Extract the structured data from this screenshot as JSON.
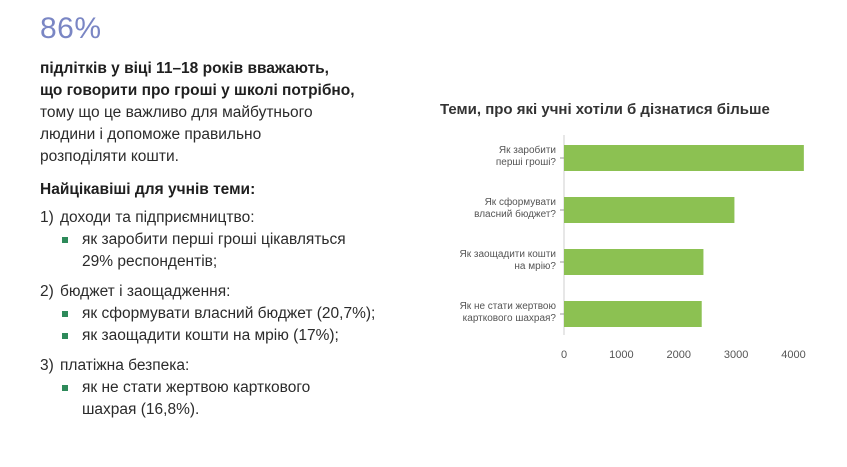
{
  "headline": {
    "percent": "86%",
    "bold_line_1": "підлітків у віці 11–18 років вважають,",
    "bold_line_2": "що говорити про гроші у школі потрібно,",
    "line_3": "тому що це важливо для майбутнього",
    "line_4": "людини і допоможе правильно",
    "line_5": "розподіляти кошти."
  },
  "topics": {
    "title": "Найцікавіші для учнів теми:",
    "groups": [
      {
        "num": "1)",
        "label": "доходи та підприємництво:",
        "items": [
          "як заробити перші гроші цікавляться",
          "29% респондентів;"
        ]
      },
      {
        "num": "2)",
        "label": "бюджет і заощадження:",
        "items": [
          "як сформувати власний бюджет (20,7%);",
          "як заощадити кошти на мрію (17%);"
        ]
      },
      {
        "num": "3)",
        "label": "платіжна безпека:",
        "items": [
          "як не стати жертвою карткового",
          "шахрая (16,8%)."
        ]
      }
    ]
  },
  "chart_data": {
    "type": "bar",
    "orientation": "horizontal",
    "title": "Теми, про які учні хотіли б дізнатися більше",
    "categories": [
      [
        "Як заробити",
        "перші гроші?"
      ],
      [
        "Як сформувати",
        "власний бюджет?"
      ],
      [
        "Як заощадити кошти",
        "на мрію?"
      ],
      [
        "Як не стати жертвою",
        "карткового шахрая?"
      ]
    ],
    "values": [
      4180,
      2970,
      2430,
      2400
    ],
    "xlim": [
      0,
      4200
    ],
    "xticks": [
      "0",
      "1000",
      "2000",
      "3000",
      "4000"
    ],
    "xtick_values": [
      0,
      1000,
      2000,
      3000,
      4000
    ],
    "bar_color": "#8cc152",
    "grid": false
  },
  "colors": {
    "accent_percent": "#7a86c4",
    "bullet": "#2e8a5a",
    "bar": "#8cc152"
  }
}
